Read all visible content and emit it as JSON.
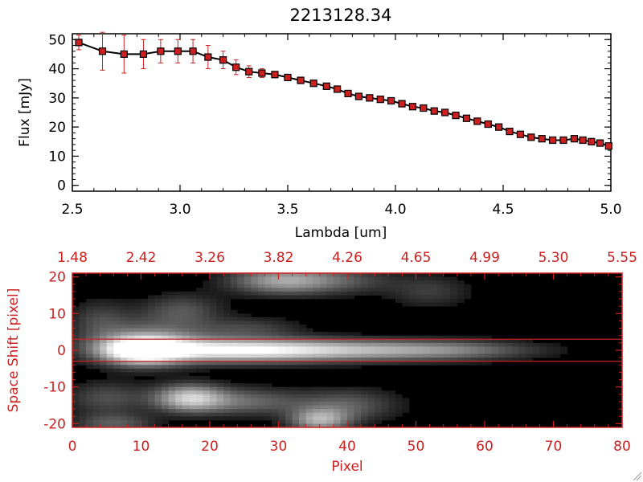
{
  "chart_data": [
    {
      "type": "line",
      "title": "2213128.34",
      "xlabel": "Lambda [um]",
      "ylabel": "Flux [mJy]",
      "xlim": [
        2.5,
        5.0
      ],
      "ylim": [
        -2,
        52
      ],
      "xticks": [
        "2.5",
        "3.0",
        "3.5",
        "4.0",
        "4.5",
        "5.0"
      ],
      "xtick_values": [
        2.5,
        3.0,
        3.5,
        4.0,
        4.5,
        5.0
      ],
      "yticks": [
        "0",
        "10",
        "20",
        "30",
        "40",
        "50"
      ],
      "ytick_values": [
        0,
        10,
        20,
        30,
        40,
        50
      ],
      "grid": false,
      "line_color": "#000000",
      "marker_color": "#cc2020",
      "errorbar_color": "#cc2020",
      "x": [
        2.53,
        2.64,
        2.74,
        2.83,
        2.91,
        2.99,
        3.06,
        3.13,
        3.2,
        3.26,
        3.32,
        3.38,
        3.44,
        3.5,
        3.56,
        3.62,
        3.68,
        3.73,
        3.78,
        3.83,
        3.88,
        3.93,
        3.98,
        4.03,
        4.08,
        4.13,
        4.18,
        4.23,
        4.28,
        4.33,
        4.38,
        4.43,
        4.48,
        4.53,
        4.58,
        4.63,
        4.68,
        4.73,
        4.78,
        4.83,
        4.87,
        4.91,
        4.95,
        4.99
      ],
      "y": [
        49,
        46,
        45,
        45,
        46,
        46,
        46,
        44,
        43,
        40.5,
        39,
        38.5,
        38,
        37,
        36,
        35,
        34,
        33,
        31.5,
        30.5,
        30,
        29.5,
        29,
        28,
        27,
        26.5,
        25.5,
        25,
        24,
        23,
        22,
        21,
        20,
        18.5,
        17.5,
        16.5,
        16,
        15.5,
        15.5,
        16,
        15.5,
        15,
        14.5,
        13.5
      ],
      "yerr": [
        2.5,
        6.5,
        6.5,
        5,
        4,
        4,
        4,
        4,
        3,
        2.5,
        2,
        1.5,
        1,
        1,
        0.8,
        0.8,
        0.8,
        0.8,
        0.8,
        0.8,
        0.8,
        0.8,
        0.8,
        0.8,
        0.8,
        0.8,
        0.8,
        0.8,
        0.8,
        0.8,
        0.8,
        0.8,
        0.8,
        0.8,
        0.8,
        0.8,
        0.8,
        0.8,
        0.8,
        0.8,
        0.8,
        0.8,
        0.8,
        0.8
      ]
    },
    {
      "type": "heatmap",
      "xlabel": "Pixel",
      "ylabel": "Space Shift [pixel]",
      "xlim": [
        0,
        80
      ],
      "ylim": [
        -21,
        21
      ],
      "xticks": [
        "0",
        "10",
        "20",
        "30",
        "40",
        "50",
        "60",
        "70",
        "80"
      ],
      "xtick_values": [
        0,
        10,
        20,
        30,
        40,
        50,
        60,
        70,
        80
      ],
      "yticks": [
        "-20",
        "-10",
        "0",
        "10",
        "20"
      ],
      "ytick_values": [
        -20,
        -10,
        0,
        10,
        20
      ],
      "top_axis_ticks": [
        "1.48",
        "2.42",
        "3.26",
        "3.82",
        "4.26",
        "4.65",
        "4.99",
        "5.30",
        "5.55"
      ],
      "extraction_lines": [
        3,
        -3
      ],
      "axis_color": "#cc2020",
      "colormap": "grayscale",
      "blobs": [
        {
          "x": 10,
          "y": 0,
          "peak": 1.0,
          "sx": 4,
          "sy": 2.6
        },
        {
          "x": 22,
          "y": 0,
          "peak": 0.75,
          "sx": 10,
          "sy": 2.2
        },
        {
          "x": 38,
          "y": 0,
          "peak": 0.55,
          "sx": 12,
          "sy": 2.0
        },
        {
          "x": 55,
          "y": 0,
          "peak": 0.32,
          "sx": 9,
          "sy": 1.8
        },
        {
          "x": 12,
          "y": 3,
          "peak": 0.35,
          "sx": 6,
          "sy": 4
        },
        {
          "x": 17,
          "y": -13,
          "peak": 0.7,
          "sx": 3.5,
          "sy": 2.5
        },
        {
          "x": 25,
          "y": -14,
          "peak": 0.35,
          "sx": 6,
          "sy": 2.5
        },
        {
          "x": 36,
          "y": -19,
          "peak": 0.6,
          "sx": 3,
          "sy": 2.2
        },
        {
          "x": 40,
          "y": -15,
          "peak": 0.3,
          "sx": 5,
          "sy": 3
        },
        {
          "x": 30,
          "y": 19,
          "peak": 0.5,
          "sx": 5,
          "sy": 2.5
        },
        {
          "x": 38,
          "y": 19,
          "peak": 0.28,
          "sx": 6,
          "sy": 2.5
        },
        {
          "x": 5,
          "y": -13,
          "peak": 0.25,
          "sx": 4,
          "sy": 3
        },
        {
          "x": 4,
          "y": 8,
          "peak": 0.2,
          "sx": 3,
          "sy": 4
        },
        {
          "x": 6,
          "y": -20,
          "peak": 0.3,
          "sx": 4,
          "sy": 2
        },
        {
          "x": 16,
          "y": 11,
          "peak": 0.25,
          "sx": 4,
          "sy": 3
        },
        {
          "x": 52,
          "y": 16,
          "peak": 0.18,
          "sx": 4,
          "sy": 3
        },
        {
          "x": 26,
          "y": 6,
          "peak": 0.2,
          "sx": 5,
          "sy": 2
        }
      ]
    }
  ]
}
